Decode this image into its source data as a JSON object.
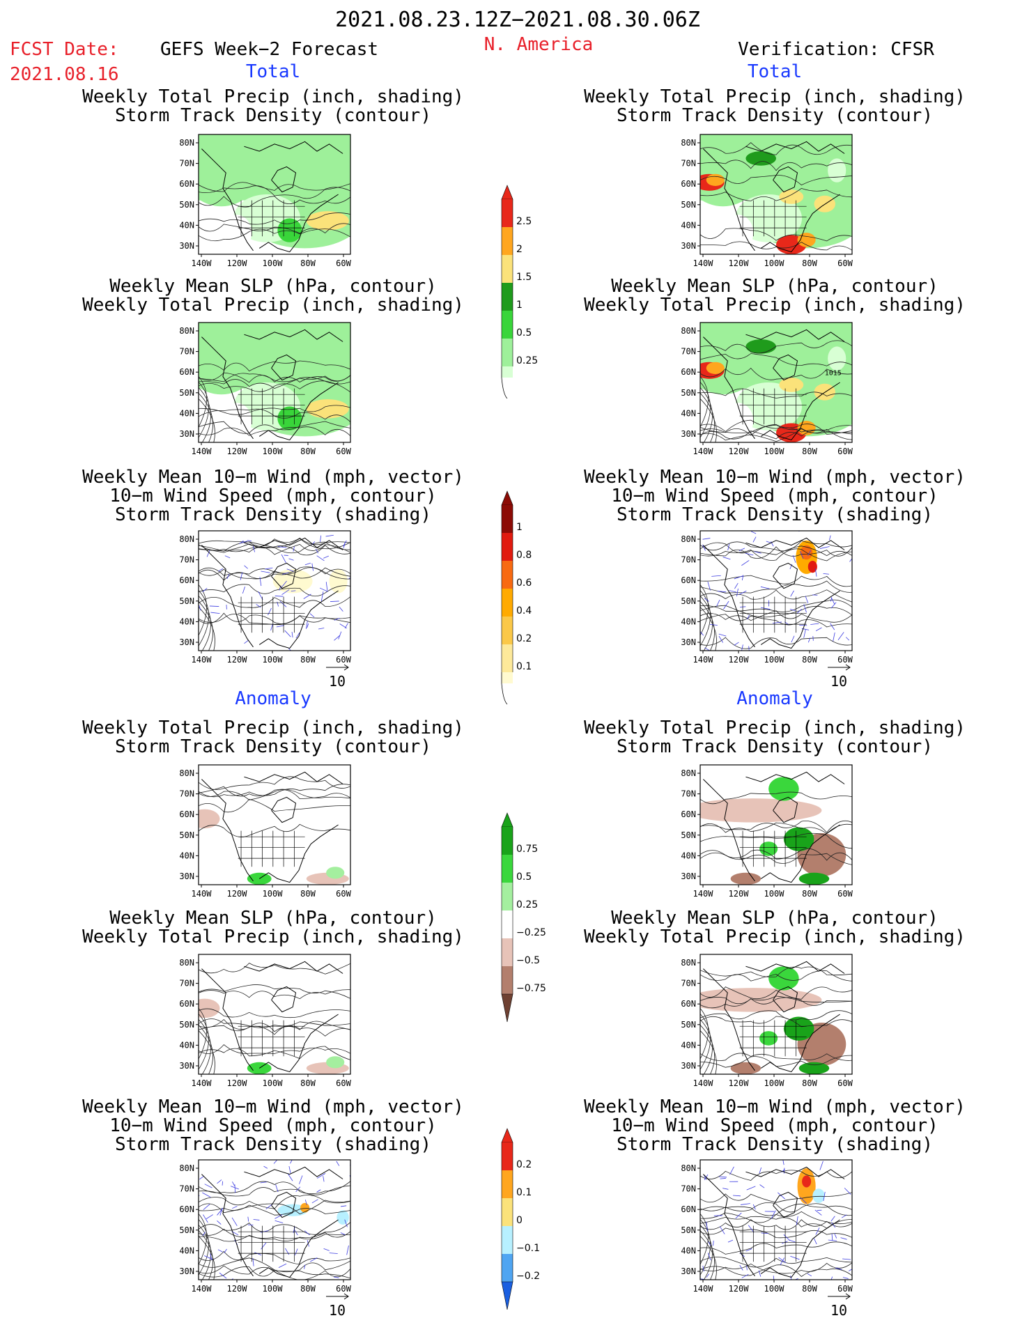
{
  "header": {
    "period": "2021.08.23.12Z−2021.08.30.06Z",
    "fcst_label": "FCST Date:",
    "fcst_date": "2021.08.16",
    "left_title": "GEFS Week−2 Forecast",
    "region": "N. America",
    "right_title": "Verification: CFSR"
  },
  "sections": {
    "total": "Total",
    "anomaly": "Anomaly"
  },
  "titles": {
    "precip_storm": [
      "Weekly Total Precip (inch, shading)",
      "Storm Track Density (contour)"
    ],
    "slp_precip": [
      "Weekly Mean SLP (hPa, contour)",
      "Weekly Total Precip (inch, shading)"
    ],
    "wind_storm": [
      "Weekly Mean 10−m Wind (mph, vector)",
      "10−m Wind Speed (mph, contour)",
      "Storm Track Density (shading)"
    ]
  },
  "axes": {
    "lat_ticks": [
      "80N",
      "70N",
      "60N",
      "50N",
      "40N",
      "30N"
    ],
    "lon_ticks": [
      "140W",
      "120W",
      "100W",
      "80W",
      "60W"
    ]
  },
  "vector_scale": "10",
  "contour_label": "1015",
  "colorbars": {
    "precip_total": {
      "labels": [
        "2.5",
        "2",
        "1.5",
        "1",
        "0.5",
        "0.25"
      ],
      "colors": [
        "#e8281a",
        "#ffa61e",
        "#fbe27a",
        "#1f9b1c",
        "#39d53a",
        "#9ef09a",
        "#d8ffd4"
      ]
    },
    "storm_total": {
      "labels": [
        "1",
        "0.8",
        "0.6",
        "0.4",
        "0.2",
        "0.1"
      ],
      "colors": [
        "#8c0b05",
        "#e11a0f",
        "#f86a11",
        "#ffaa00",
        "#fbc848",
        "#fde99a",
        "#fffad0"
      ]
    },
    "precip_anom": {
      "labels": [
        "0.75",
        "0.5",
        "0.25",
        "−0.25",
        "−0.5",
        "−0.75"
      ],
      "colors": [
        "#19a31a",
        "#3ad73c",
        "#a4ef9f",
        "#ffffff",
        "#e7c3b8",
        "#b37f6d",
        "#6e4132"
      ]
    },
    "storm_anom": {
      "labels": [
        "0.2",
        "0.1",
        "0",
        "−0.1",
        "−0.2"
      ],
      "colors": [
        "#e8281a",
        "#ffa61e",
        "#fbe27a",
        "#b7f0ff",
        "#4fa5f2",
        "#1a5fe0"
      ]
    }
  }
}
